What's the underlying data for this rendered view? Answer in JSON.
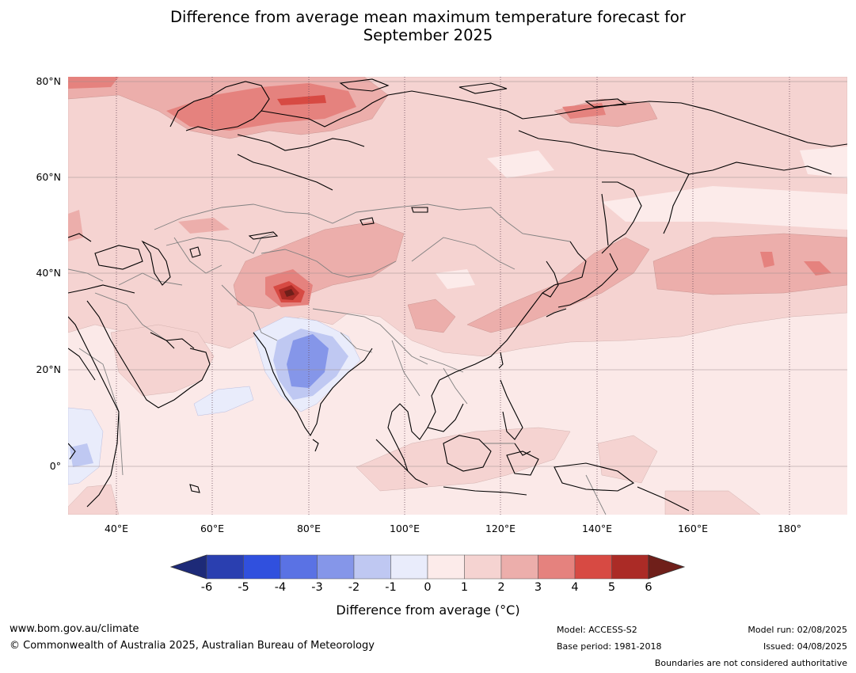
{
  "title": {
    "line1": "Difference from average mean maximum temperature forecast for",
    "line2": "September 2025"
  },
  "map": {
    "latitude_labels": [
      "80°N",
      "60°N",
      "40°N",
      "20°N",
      "0°"
    ],
    "longitude_labels": [
      "40°E",
      "60°E",
      "80°E",
      "100°E",
      "120°E",
      "140°E",
      "160°E",
      "180°"
    ],
    "colors": {
      "ocean_bg": "#fbe9e8",
      "anom_0_1": "#fcebea",
      "anom_1_2": "#f5d3d1",
      "anom_2_3": "#ecaeab",
      "anom_3_4": "#e5827e",
      "anom_4_5": "#d74a43",
      "anom_5_6": "#ab2b26",
      "anom_gt6": "#6f1f1a",
      "neg_0_1": "#e9ecfb",
      "neg_1_2": "#bfc8f2",
      "neg_2_3": "#8596e9"
    }
  },
  "colorbar": {
    "ticks": [
      "-6",
      "-5",
      "-4",
      "-3",
      "-2",
      "-1",
      "0",
      "1",
      "2",
      "3",
      "4",
      "5",
      "6"
    ],
    "colors": [
      "#1d2a78",
      "#2a3fb0",
      "#3050de",
      "#5a72e4",
      "#8596e9",
      "#bfc8f2",
      "#e9ecfb",
      "#fcebea",
      "#f5d3d1",
      "#ecaeab",
      "#e5827e",
      "#d74a43",
      "#ab2b26",
      "#6f1f1a"
    ],
    "label": "Difference from average (°C)"
  },
  "footer": {
    "website": "www.bom.gov.au/climate",
    "copyright": "© Commonwealth of Australia 2025, Australian Bureau of Meteorology",
    "model": "Model: ACCESS-S2",
    "base_period": "Base period: 1981-2018",
    "model_run": "Model run: 02/08/2025",
    "issued": "Issued: 04/08/2025",
    "disclaimer": "Boundaries are not considered authoritative"
  }
}
